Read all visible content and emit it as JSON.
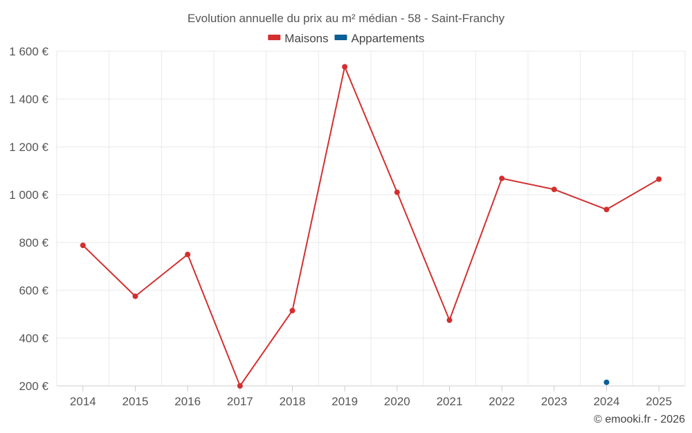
{
  "chart_data": {
    "type": "line",
    "title": "Evolution annuelle du prix au m² médian - 58 - Saint-Franchy",
    "categories": [
      "2014",
      "2015",
      "2016",
      "2017",
      "2018",
      "2019",
      "2020",
      "2021",
      "2022",
      "2023",
      "2024",
      "2025"
    ],
    "series": [
      {
        "name": "Maisons",
        "color": "#d32f2f",
        "values": [
          788,
          575,
          750,
          200,
          515,
          1535,
          1010,
          475,
          1068,
          1022,
          938,
          1065
        ]
      },
      {
        "name": "Appartements",
        "color": "#0a5f96",
        "values": [
          null,
          null,
          null,
          null,
          null,
          null,
          null,
          null,
          null,
          null,
          215,
          null
        ]
      }
    ],
    "y_ticks": [
      200,
      400,
      600,
      800,
      1000,
      1200,
      1400,
      1600
    ],
    "y_tick_labels": [
      "200 €",
      "400 €",
      "600 €",
      "800 €",
      "1 000 €",
      "1 200 €",
      "1 400 €",
      "1 600 €"
    ],
    "ylim": [
      200,
      1600
    ],
    "xlabel": "",
    "ylabel": "",
    "grid": true,
    "legend_position": "top-center",
    "credit": "© emooki.fr - 2026"
  }
}
